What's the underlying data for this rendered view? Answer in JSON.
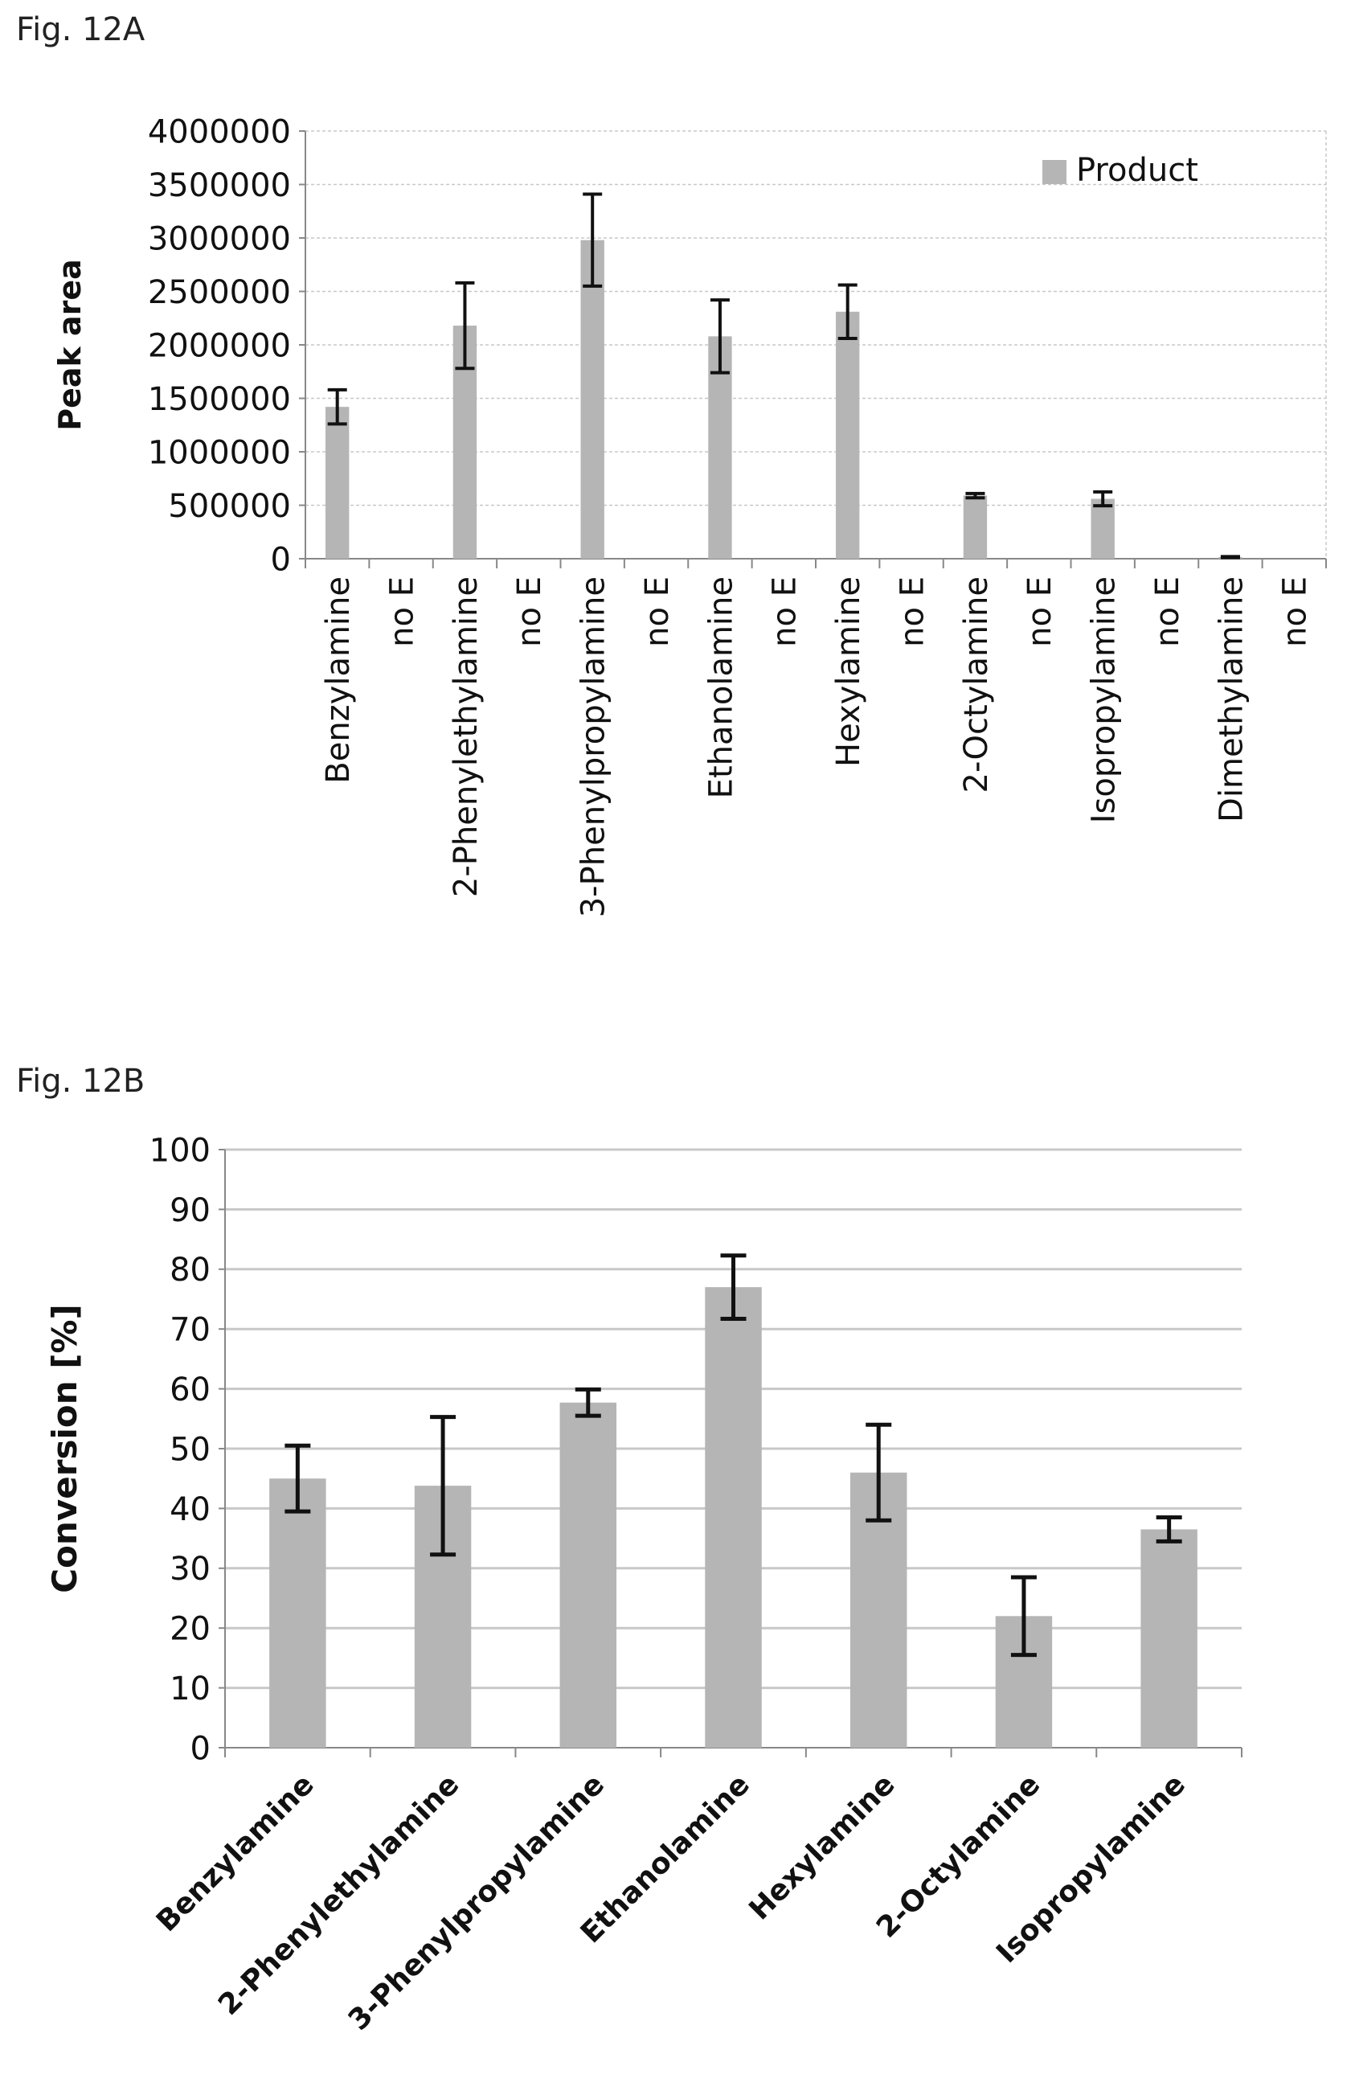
{
  "figures": {
    "a_label": "Fig. 12A",
    "b_label": "Fig. 12B"
  },
  "colors": {
    "bar": "#b5b5b5",
    "gridline": "#c8c8c8",
    "axis": "#888888",
    "error_bar": "#111111",
    "text": "#111111"
  },
  "chart_data": [
    {
      "type": "bar",
      "title": "",
      "xlabel": "",
      "ylabel": "Peak area",
      "ylim": [
        0,
        4000000
      ],
      "yticks": [
        0,
        500000,
        1000000,
        1500000,
        2000000,
        2500000,
        3000000,
        3500000,
        4000000
      ],
      "grid": true,
      "legend": "top-right",
      "categories": [
        "Benzylamine",
        "no E",
        "2-Phenylethylamine",
        "no E",
        "3-Phenylpropylamine",
        "no E",
        "Ethanolamine",
        "no E",
        "Hexylamine",
        "no E",
        "2-Octylamine",
        "no E",
        "Isopropylamine",
        "no E",
        "Dimethylamine",
        "no E"
      ],
      "series": [
        {
          "name": "Product",
          "values": [
            1420000,
            0,
            2180000,
            0,
            2980000,
            0,
            2080000,
            0,
            2310000,
            0,
            590000,
            0,
            560000,
            0,
            15000,
            0
          ],
          "errors": [
            160000,
            0,
            400000,
            0,
            430000,
            0,
            340000,
            0,
            250000,
            0,
            20000,
            0,
            65000,
            0,
            5000,
            0
          ]
        }
      ]
    },
    {
      "type": "bar",
      "title": "",
      "xlabel": "",
      "ylabel": "Conversion [%]",
      "ylim": [
        0,
        100
      ],
      "yticks": [
        0,
        10,
        20,
        30,
        40,
        50,
        60,
        70,
        80,
        90,
        100
      ],
      "grid": true,
      "categories": [
        "Benzylamine",
        "2-Phenylethylamine",
        "3-Phenylpropylamine",
        "Ethanolamine",
        "Hexylamine",
        "2-Octylamine",
        "Isopropylamine"
      ],
      "series": [
        {
          "values": [
            45,
            43.8,
            57.7,
            77,
            46,
            22,
            36.5
          ],
          "errors": [
            5.5,
            11.5,
            2.2,
            5.3,
            8,
            6.5,
            2
          ]
        }
      ]
    }
  ]
}
